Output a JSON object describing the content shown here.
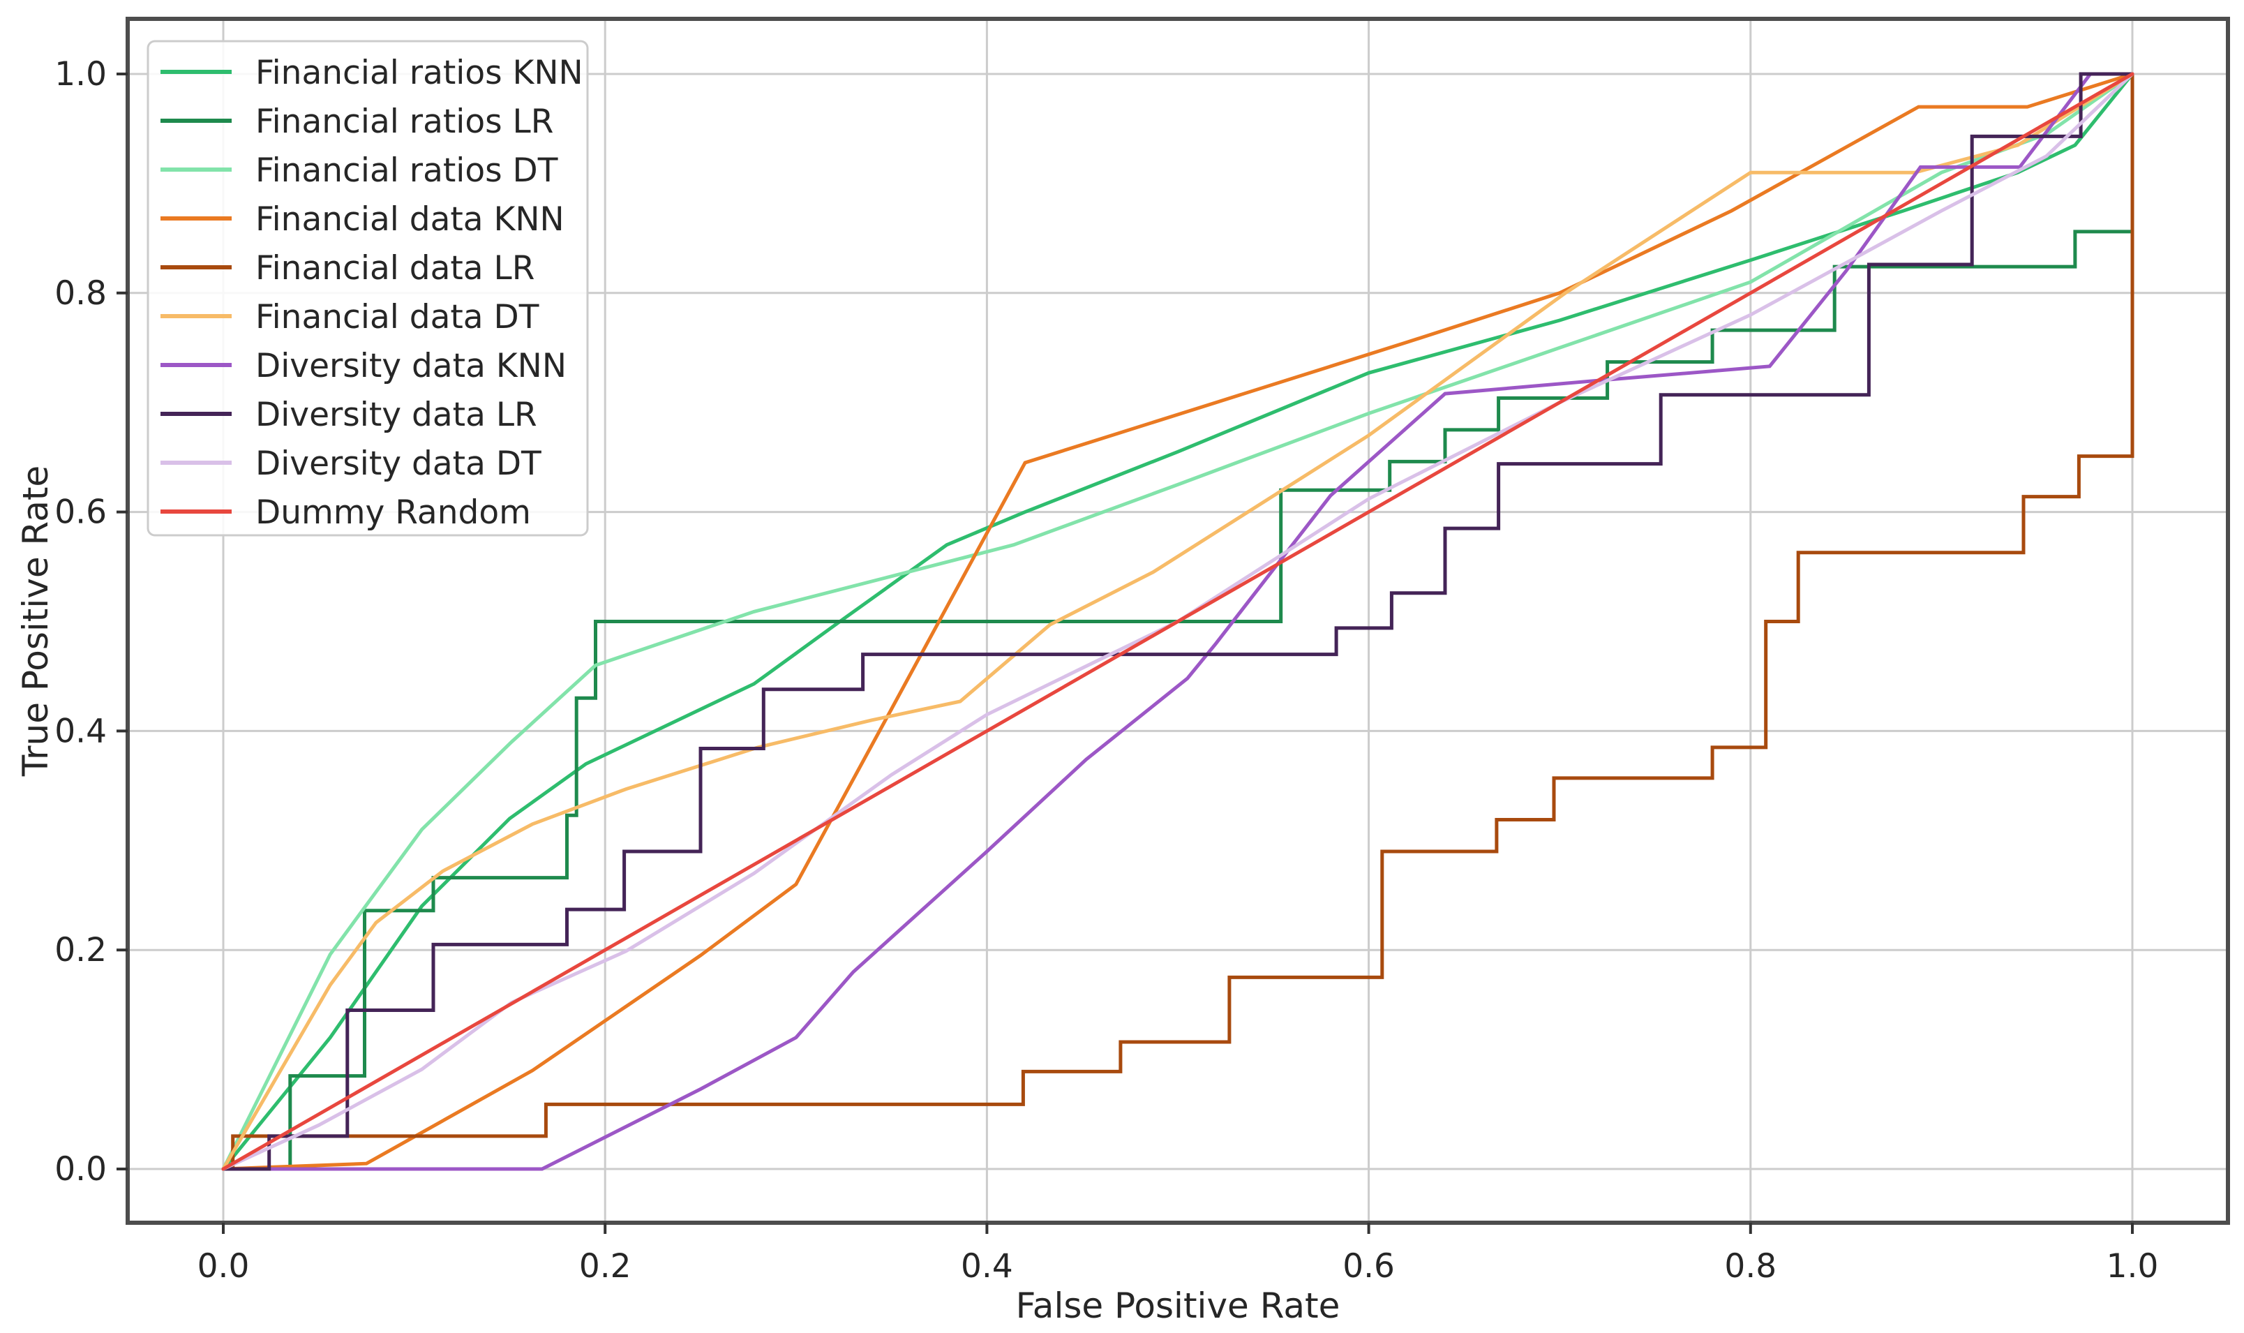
{
  "figure": {
    "background": "#ffffff",
    "grid_color": "#cccccc",
    "spine_color": "#4d4d4d",
    "tick_color": "#333333",
    "text_color": "#262626",
    "legend_border_color": "#cccccc",
    "legend_background": "#ffffff"
  },
  "chart_data": {
    "type": "line",
    "title": "",
    "xlabel": "False Positive Rate",
    "ylabel": "True Positive Rate",
    "xlim": [
      0,
      1
    ],
    "ylim": [
      0,
      1
    ],
    "xticks": [
      0.0,
      0.2,
      0.4,
      0.6,
      0.8,
      1.0
    ],
    "yticks": [
      0.0,
      0.2,
      0.4,
      0.6,
      0.8,
      1.0
    ],
    "grid": true,
    "legend_position": "upper left",
    "series": [
      {
        "name": "Financial ratios KNN",
        "color": "#2ebd6e",
        "points": [
          [
            0,
            0
          ],
          [
            0.056,
            0.12
          ],
          [
            0.104,
            0.24
          ],
          [
            0.15,
            0.32
          ],
          [
            0.19,
            0.37
          ],
          [
            0.278,
            0.443
          ],
          [
            0.323,
            0.5
          ],
          [
            0.379,
            0.57
          ],
          [
            0.42,
            0.6
          ],
          [
            0.5,
            0.655
          ],
          [
            0.6,
            0.727
          ],
          [
            0.7,
            0.775
          ],
          [
            0.8,
            0.83
          ],
          [
            0.88,
            0.875
          ],
          [
            0.94,
            0.91
          ],
          [
            0.97,
            0.935
          ],
          [
            1,
            1
          ]
        ]
      },
      {
        "name": "Financial ratios LR",
        "color": "#1e8a4d",
        "points": [
          [
            0,
            0
          ],
          [
            0.035,
            0
          ],
          [
            0.035,
            0.085
          ],
          [
            0.074,
            0.085
          ],
          [
            0.074,
            0.236
          ],
          [
            0.11,
            0.236
          ],
          [
            0.11,
            0.266
          ],
          [
            0.18,
            0.266
          ],
          [
            0.18,
            0.323
          ],
          [
            0.185,
            0.323
          ],
          [
            0.185,
            0.43
          ],
          [
            0.195,
            0.43
          ],
          [
            0.195,
            0.5
          ],
          [
            0.554,
            0.5
          ],
          [
            0.554,
            0.62
          ],
          [
            0.611,
            0.62
          ],
          [
            0.611,
            0.646
          ],
          [
            0.64,
            0.646
          ],
          [
            0.64,
            0.675
          ],
          [
            0.668,
            0.675
          ],
          [
            0.668,
            0.704
          ],
          [
            0.725,
            0.704
          ],
          [
            0.725,
            0.737
          ],
          [
            0.78,
            0.737
          ],
          [
            0.78,
            0.766
          ],
          [
            0.844,
            0.766
          ],
          [
            0.844,
            0.824
          ],
          [
            0.97,
            0.824
          ],
          [
            0.97,
            0.856
          ],
          [
            1,
            0.856
          ],
          [
            1,
            1
          ]
        ]
      },
      {
        "name": "Financial ratios DT",
        "color": "#82e3aa",
        "points": [
          [
            0,
            0
          ],
          [
            0.056,
            0.196
          ],
          [
            0.104,
            0.31
          ],
          [
            0.151,
            0.39
          ],
          [
            0.195,
            0.46
          ],
          [
            0.278,
            0.509
          ],
          [
            0.414,
            0.57
          ],
          [
            0.5,
            0.625
          ],
          [
            0.6,
            0.69
          ],
          [
            0.7,
            0.75
          ],
          [
            0.8,
            0.81
          ],
          [
            0.9,
            0.91
          ],
          [
            0.955,
            0.945
          ],
          [
            1,
            1
          ]
        ]
      },
      {
        "name": "Financial data KNN",
        "color": "#ea7a22",
        "points": [
          [
            0,
            0
          ],
          [
            0.075,
            0.005
          ],
          [
            0.162,
            0.09
          ],
          [
            0.25,
            0.195
          ],
          [
            0.3,
            0.26
          ],
          [
            0.35,
            0.42
          ],
          [
            0.42,
            0.645
          ],
          [
            0.52,
            0.7
          ],
          [
            0.62,
            0.755
          ],
          [
            0.7,
            0.8
          ],
          [
            0.79,
            0.875
          ],
          [
            0.888,
            0.97
          ],
          [
            0.945,
            0.97
          ],
          [
            1,
            1
          ]
        ]
      },
      {
        "name": "Financial data LR",
        "color": "#a84a0e",
        "points": [
          [
            0,
            0
          ],
          [
            0.005,
            0
          ],
          [
            0.005,
            0.03
          ],
          [
            0.169,
            0.03
          ],
          [
            0.169,
            0.059
          ],
          [
            0.419,
            0.059
          ],
          [
            0.419,
            0.089
          ],
          [
            0.47,
            0.089
          ],
          [
            0.47,
            0.116
          ],
          [
            0.527,
            0.116
          ],
          [
            0.527,
            0.175
          ],
          [
            0.607,
            0.175
          ],
          [
            0.607,
            0.29
          ],
          [
            0.667,
            0.29
          ],
          [
            0.667,
            0.319
          ],
          [
            0.697,
            0.319
          ],
          [
            0.697,
            0.357
          ],
          [
            0.78,
            0.357
          ],
          [
            0.78,
            0.385
          ],
          [
            0.808,
            0.385
          ],
          [
            0.808,
            0.5
          ],
          [
            0.825,
            0.5
          ],
          [
            0.825,
            0.563
          ],
          [
            0.943,
            0.563
          ],
          [
            0.943,
            0.614
          ],
          [
            0.972,
            0.614
          ],
          [
            0.972,
            0.651
          ],
          [
            1,
            0.651
          ],
          [
            1,
            1
          ]
        ]
      },
      {
        "name": "Financial data DT",
        "color": "#f7bb67",
        "points": [
          [
            0,
            0
          ],
          [
            0.03,
            0.09
          ],
          [
            0.056,
            0.168
          ],
          [
            0.08,
            0.225
          ],
          [
            0.115,
            0.272
          ],
          [
            0.162,
            0.315
          ],
          [
            0.211,
            0.347
          ],
          [
            0.28,
            0.385
          ],
          [
            0.34,
            0.41
          ],
          [
            0.386,
            0.427
          ],
          [
            0.433,
            0.497
          ],
          [
            0.487,
            0.545
          ],
          [
            0.6,
            0.67
          ],
          [
            0.703,
            0.8
          ],
          [
            0.8,
            0.91
          ],
          [
            0.886,
            0.91
          ],
          [
            0.94,
            0.935
          ],
          [
            1,
            1
          ]
        ]
      },
      {
        "name": "Diversity data KNN",
        "color": "#9c57c6",
        "points": [
          [
            0,
            0
          ],
          [
            0.167,
            0
          ],
          [
            0.25,
            0.073
          ],
          [
            0.3,
            0.12
          ],
          [
            0.33,
            0.18
          ],
          [
            0.4,
            0.29
          ],
          [
            0.452,
            0.374
          ],
          [
            0.505,
            0.448
          ],
          [
            0.52,
            0.48
          ],
          [
            0.58,
            0.615
          ],
          [
            0.64,
            0.708
          ],
          [
            0.72,
            0.72
          ],
          [
            0.81,
            0.733
          ],
          [
            0.85,
            0.82
          ],
          [
            0.889,
            0.915
          ],
          [
            0.941,
            0.915
          ],
          [
            0.978,
            1.0
          ],
          [
            1,
            1
          ]
        ]
      },
      {
        "name": "Diversity data LR",
        "color": "#442457",
        "points": [
          [
            0,
            0
          ],
          [
            0.024,
            0
          ],
          [
            0.024,
            0.03
          ],
          [
            0.065,
            0.03
          ],
          [
            0.065,
            0.145
          ],
          [
            0.11,
            0.145
          ],
          [
            0.11,
            0.205
          ],
          [
            0.18,
            0.205
          ],
          [
            0.18,
            0.237
          ],
          [
            0.21,
            0.237
          ],
          [
            0.21,
            0.29
          ],
          [
            0.25,
            0.29
          ],
          [
            0.25,
            0.384
          ],
          [
            0.283,
            0.384
          ],
          [
            0.283,
            0.438
          ],
          [
            0.335,
            0.438
          ],
          [
            0.335,
            0.47
          ],
          [
            0.583,
            0.47
          ],
          [
            0.583,
            0.494
          ],
          [
            0.612,
            0.494
          ],
          [
            0.612,
            0.526
          ],
          [
            0.64,
            0.526
          ],
          [
            0.64,
            0.585
          ],
          [
            0.668,
            0.585
          ],
          [
            0.668,
            0.644
          ],
          [
            0.753,
            0.644
          ],
          [
            0.753,
            0.707
          ],
          [
            0.862,
            0.707
          ],
          [
            0.862,
            0.826
          ],
          [
            0.916,
            0.826
          ],
          [
            0.916,
            0.943
          ],
          [
            0.973,
            0.943
          ],
          [
            0.973,
            1.0
          ],
          [
            1,
            1
          ]
        ]
      },
      {
        "name": "Diversity data DT",
        "color": "#d9c0e8",
        "points": [
          [
            0,
            0
          ],
          [
            0.05,
            0.04
          ],
          [
            0.104,
            0.091
          ],
          [
            0.151,
            0.152
          ],
          [
            0.211,
            0.199
          ],
          [
            0.278,
            0.27
          ],
          [
            0.35,
            0.36
          ],
          [
            0.4,
            0.415
          ],
          [
            0.5,
            0.5
          ],
          [
            0.6,
            0.612
          ],
          [
            0.7,
            0.7
          ],
          [
            0.8,
            0.78
          ],
          [
            0.9,
            0.875
          ],
          [
            0.955,
            0.925
          ],
          [
            1,
            1
          ]
        ]
      },
      {
        "name": "Dummy Random",
        "color": "#e8473e",
        "points": [
          [
            0,
            0
          ],
          [
            1,
            1
          ]
        ]
      }
    ]
  }
}
